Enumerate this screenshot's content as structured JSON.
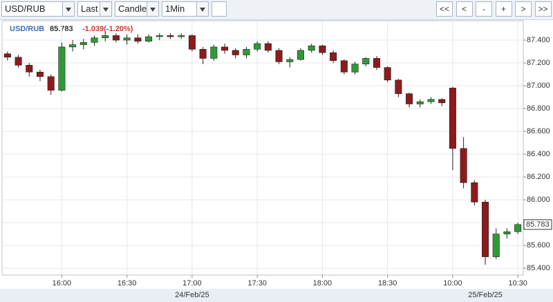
{
  "toolbar": {
    "symbol": "USD/RUB",
    "price_type": "Last",
    "chart_style": "Candle",
    "interval": "1Min",
    "buttons": [
      "<<",
      "<",
      "-",
      "+",
      ">",
      ">>"
    ]
  },
  "chart_data": {
    "type": "candlestick",
    "header": {
      "symbol": "USD/RUB",
      "last": "85.783",
      "change": "-1.039(-1.20%)"
    },
    "categories": [
      null,
      null,
      null,
      null,
      null,
      "16:00",
      null,
      null,
      null,
      null,
      null,
      "16:30",
      null,
      null,
      null,
      null,
      null,
      "17:00",
      null,
      null,
      null,
      null,
      null,
      "17:30",
      null,
      null,
      null,
      null,
      null,
      "18:00",
      null,
      null,
      null,
      null,
      null,
      "18:30",
      null,
      null,
      null,
      null,
      null,
      "10:00",
      null,
      null,
      null,
      null,
      null,
      "10:30"
    ],
    "date_labels": [
      {
        "index": 17,
        "label": "24/Feb/25"
      },
      {
        "index": 44,
        "label": "25/Feb/25"
      }
    ],
    "open": [
      87.28,
      87.25,
      87.18,
      87.12,
      87.08,
      86.96,
      87.34,
      87.36,
      87.38,
      87.42,
      87.44,
      87.4,
      87.42,
      87.39,
      87.43,
      87.44,
      87.43,
      87.44,
      87.32,
      87.24,
      87.34,
      87.31,
      87.27,
      87.32,
      87.37,
      87.31,
      87.21,
      87.23,
      87.31,
      87.35,
      87.29,
      87.22,
      87.12,
      87.19,
      87.24,
      87.16,
      87.05,
      86.93,
      86.84,
      86.86,
      86.88,
      86.98,
      86.45,
      86.15,
      85.98,
      85.5,
      85.7,
      85.72
    ],
    "high": [
      87.3,
      87.27,
      87.2,
      87.14,
      87.1,
      87.38,
      87.4,
      87.41,
      87.44,
      87.47,
      87.46,
      87.45,
      87.45,
      87.45,
      87.46,
      87.46,
      87.46,
      87.45,
      87.34,
      87.36,
      87.37,
      87.33,
      87.34,
      87.39,
      87.39,
      87.33,
      87.25,
      87.33,
      87.37,
      87.36,
      87.31,
      87.23,
      87.21,
      87.25,
      87.26,
      87.17,
      87.06,
      86.94,
      86.88,
      86.9,
      86.89,
      86.99,
      86.55,
      86.17,
      86.0,
      85.75,
      85.75,
      85.8
    ],
    "low": [
      87.22,
      87.16,
      87.08,
      87.04,
      86.92,
      86.95,
      87.3,
      87.32,
      87.35,
      87.39,
      87.38,
      87.36,
      87.37,
      87.38,
      87.4,
      87.41,
      87.41,
      87.3,
      87.19,
      87.22,
      87.28,
      87.24,
      87.24,
      87.3,
      87.29,
      87.19,
      87.16,
      87.22,
      87.29,
      87.27,
      87.2,
      87.1,
      87.1,
      87.17,
      87.14,
      87.03,
      86.9,
      86.81,
      86.81,
      86.84,
      86.82,
      86.26,
      86.1,
      85.95,
      85.43,
      85.48,
      85.66,
      85.7
    ],
    "close": [
      87.25,
      87.18,
      87.12,
      87.08,
      86.96,
      87.34,
      87.36,
      87.38,
      87.42,
      87.44,
      87.4,
      87.42,
      87.39,
      87.43,
      87.44,
      87.43,
      87.44,
      87.32,
      87.24,
      87.34,
      87.31,
      87.27,
      87.32,
      87.37,
      87.31,
      87.21,
      87.23,
      87.31,
      87.35,
      87.29,
      87.22,
      87.12,
      87.19,
      87.24,
      87.16,
      87.05,
      86.93,
      86.84,
      86.86,
      86.88,
      86.85,
      86.45,
      86.15,
      85.98,
      85.5,
      85.7,
      85.72,
      85.783
    ],
    "up_color": "#2f9a35",
    "down_color": "#8e1b1b",
    "ylim": [
      85.34,
      87.57
    ],
    "yticks": [
      {
        "value": 85.4,
        "label": "85.400"
      },
      {
        "value": 85.6,
        "label": "85.600"
      },
      {
        "value": 85.8,
        "label": "85.800"
      },
      {
        "value": 86,
        "label": "86.000"
      },
      {
        "value": 86.2,
        "label": "86.200"
      },
      {
        "value": 86.4,
        "label": "86.400"
      },
      {
        "value": 86.6,
        "label": "86.600"
      },
      {
        "value": 86.8,
        "label": "86.800"
      },
      {
        "value": 87,
        "label": "87.000"
      },
      {
        "value": 87.2,
        "label": "87.200"
      },
      {
        "value": 87.4,
        "label": "87.400"
      }
    ],
    "grid": true
  }
}
